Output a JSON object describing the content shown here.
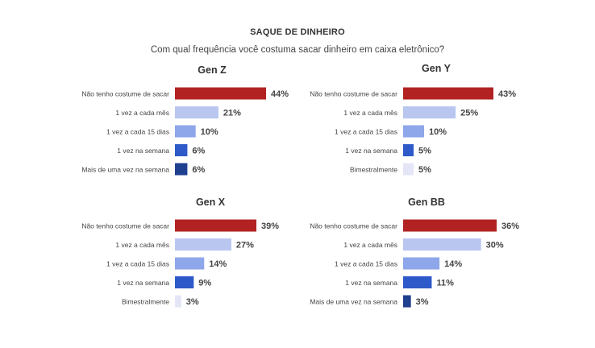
{
  "header": {
    "title": "SAQUE DE DINHEIRO",
    "subtitle": "Com qual frequência você costuma sacar dinheiro em caixa eletrônico?"
  },
  "chart_data": [
    {
      "type": "bar",
      "orientation": "horizontal",
      "title": "Gen Z",
      "categories": [
        "Não tenho costume de sacar",
        "1 vez a cada mês",
        "1 vez a cada 15 dias",
        "1 vez na semana",
        "Mais de uma vez na semana"
      ],
      "values": [
        44,
        21,
        10,
        6,
        6
      ],
      "value_labels": [
        "44%",
        "21%",
        "10%",
        "6%",
        "6%"
      ],
      "colors": [
        "#B22222",
        "#B8C6F0",
        "#8EA6EA",
        "#2E59C9",
        "#1F3F8F"
      ],
      "xlim": [
        0,
        44
      ],
      "grid": false
    },
    {
      "type": "bar",
      "orientation": "horizontal",
      "title": "Gen Y",
      "categories": [
        "Não tenho costume de sacar",
        "1 vez a cada mês",
        "1 vez a cada 15 dias",
        "1 vez na semana",
        "Bimestralmente"
      ],
      "values": [
        43,
        25,
        10,
        5,
        5
      ],
      "value_labels": [
        "43%",
        "25%",
        "10%",
        "5%",
        "5%"
      ],
      "colors": [
        "#B22222",
        "#B8C6F0",
        "#8EA6EA",
        "#2E59C9",
        "#E4E6F7"
      ],
      "xlim": [
        0,
        43
      ],
      "grid": false
    },
    {
      "type": "bar",
      "orientation": "horizontal",
      "title": "Gen X",
      "categories": [
        "Não tenho costume de sacar",
        "1 vez a cada mês",
        "1 vez a cada 15 dias",
        "1 vez na semana",
        "Bimestralmente"
      ],
      "values": [
        39,
        27,
        14,
        9,
        3
      ],
      "value_labels": [
        "39%",
        "27%",
        "14%",
        "9%",
        "3%"
      ],
      "colors": [
        "#B22222",
        "#B8C6F0",
        "#8EA6EA",
        "#2E59C9",
        "#E4E6F7"
      ],
      "xlim": [
        0,
        39
      ],
      "grid": false
    },
    {
      "type": "bar",
      "orientation": "horizontal",
      "title": "Gen BB",
      "categories": [
        "Não tenho costume de sacar",
        "1 vez a cada mês",
        "1 vez a cada 15 dias",
        "1 vez na semana",
        "Mais de uma vez na semana"
      ],
      "values": [
        36,
        30,
        14,
        11,
        3
      ],
      "value_labels": [
        "36%",
        "30%",
        "14%",
        "11%",
        "3%"
      ],
      "colors": [
        "#B22222",
        "#B8C6F0",
        "#8EA6EA",
        "#2E59C9",
        "#1F3F8F"
      ],
      "xlim": [
        0,
        36
      ],
      "grid": false
    }
  ]
}
